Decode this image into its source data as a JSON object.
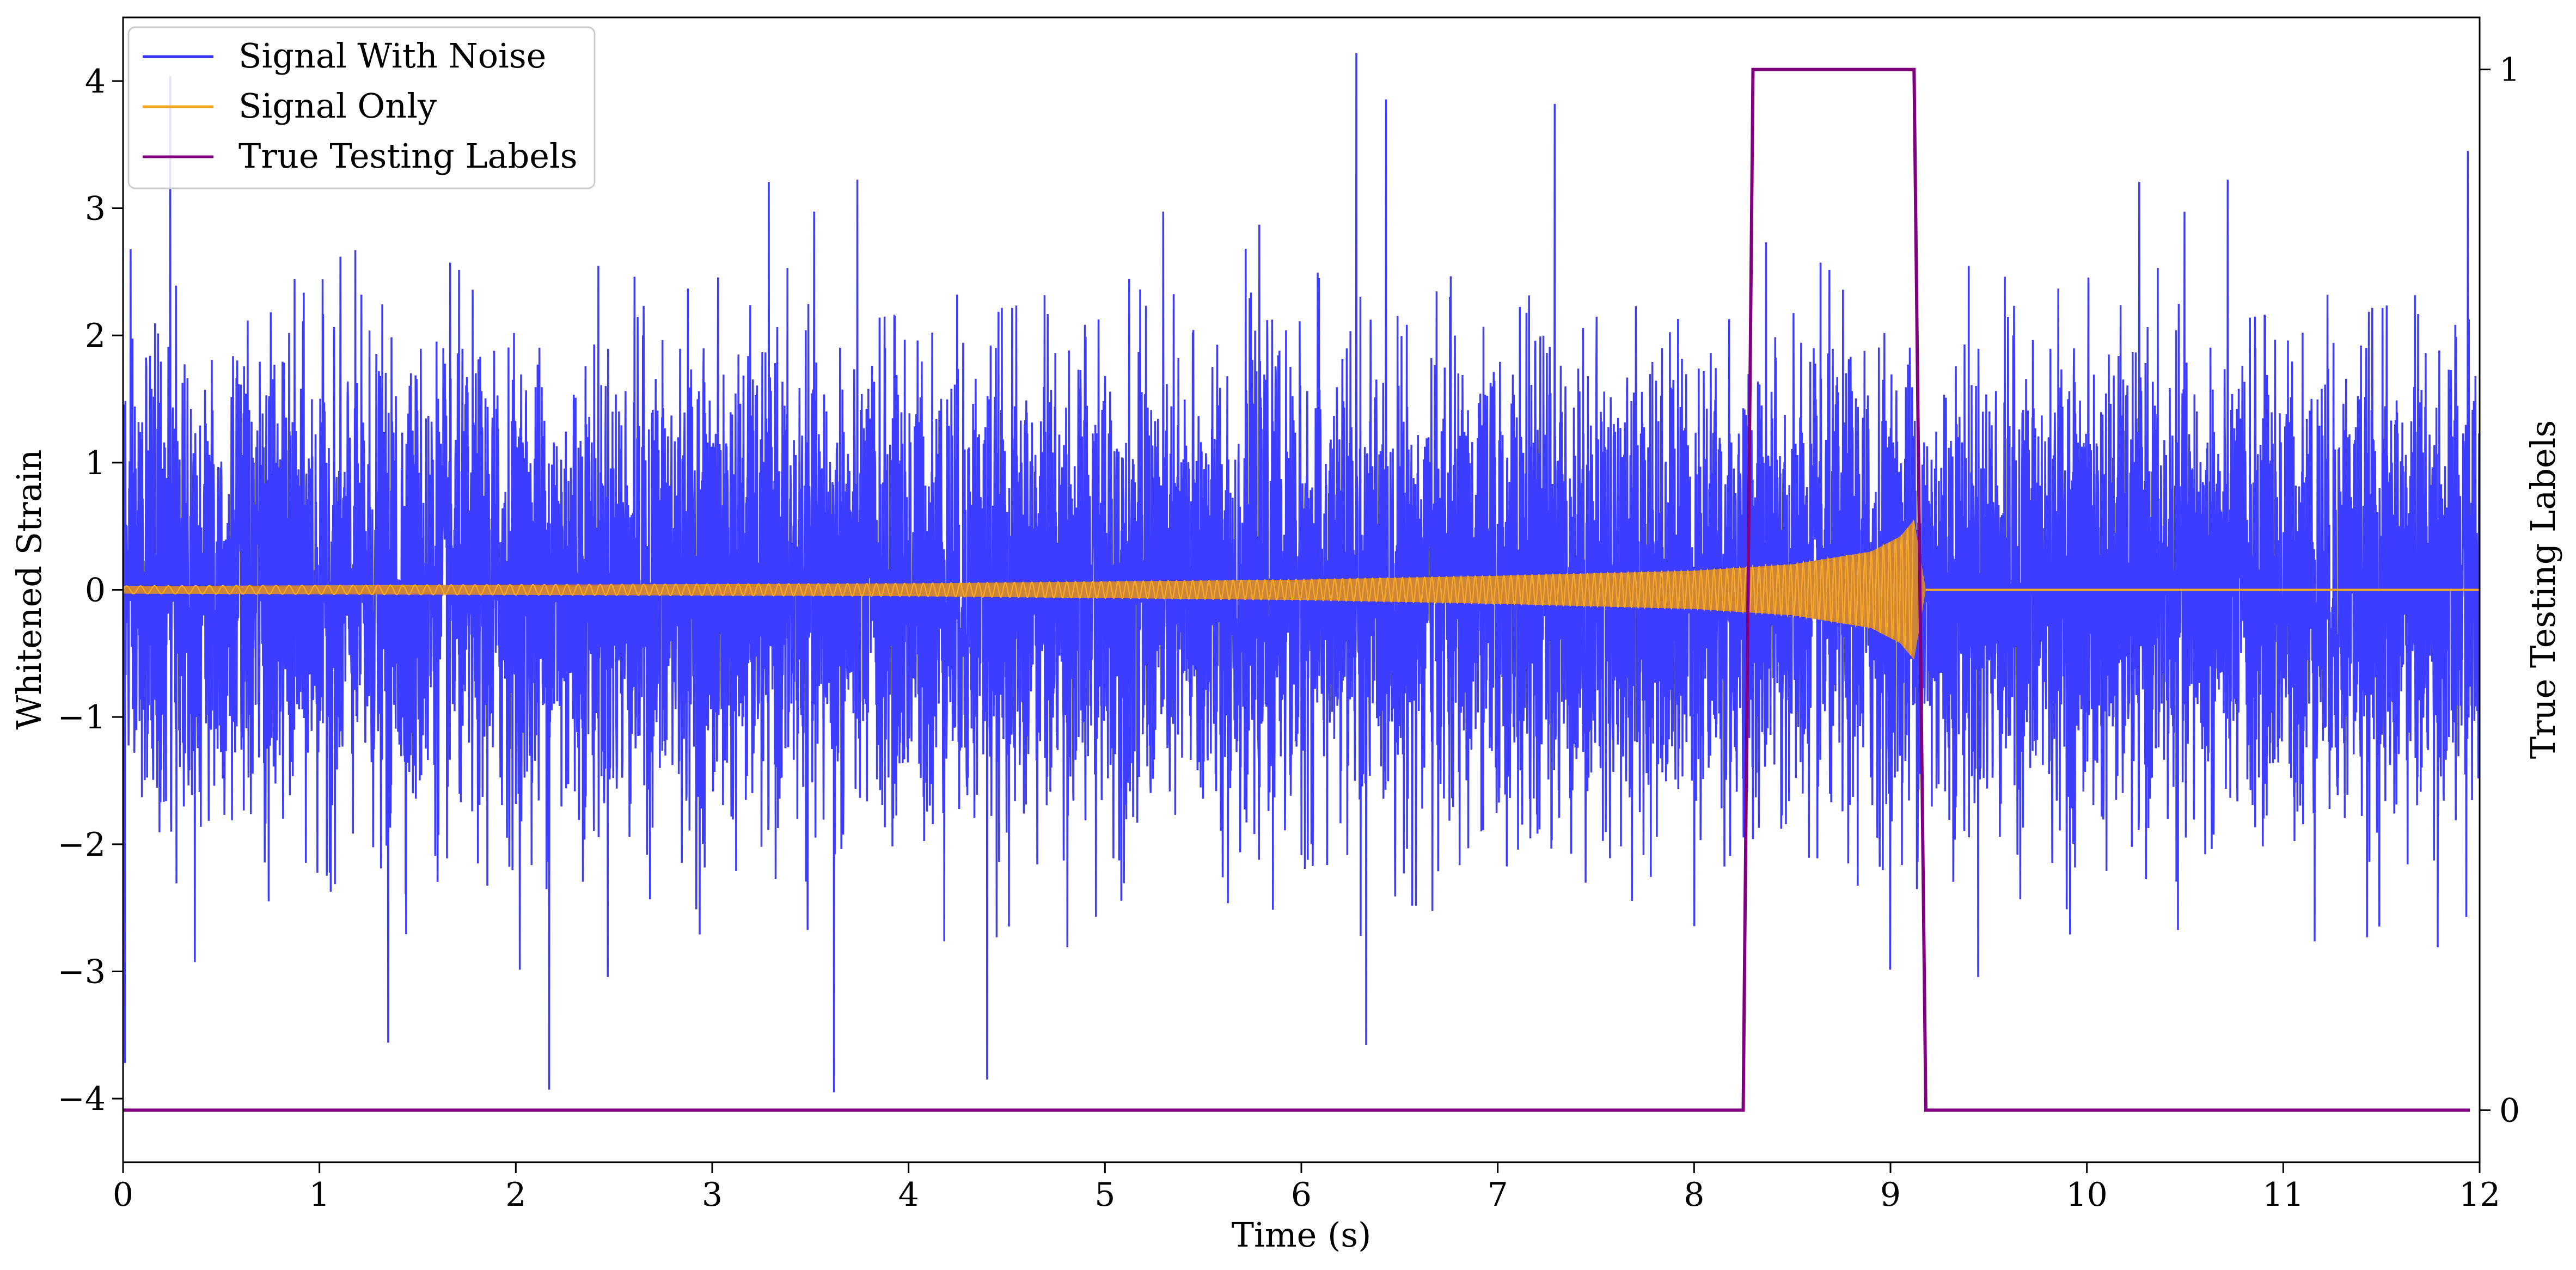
{
  "chart_data": {
    "type": "line",
    "title": "",
    "xlabel": "Time (s)",
    "ylabel": "Whitened Strain",
    "y2label": "True Testing Labels",
    "xlim": [
      0,
      12
    ],
    "ylim": [
      -4.5,
      4.5
    ],
    "y2lim": [
      -0.05,
      1.05
    ],
    "x_ticks": [
      0,
      1,
      2,
      3,
      4,
      5,
      6,
      7,
      8,
      9,
      10,
      11,
      12
    ],
    "x_tick_labels": [
      "0",
      "1",
      "2",
      "3",
      "4",
      "5",
      "6",
      "7",
      "8",
      "9",
      "10",
      "11",
      "12"
    ],
    "y_ticks": [
      -4,
      -3,
      -2,
      -1,
      0,
      1,
      2,
      3,
      4
    ],
    "y_tick_labels": [
      "−4",
      "−3",
      "−2",
      "−1",
      "0",
      "1",
      "2",
      "3",
      "4"
    ],
    "y2_ticks": [
      0,
      1
    ],
    "y2_tick_labels": [
      "0",
      "1"
    ],
    "grid": false,
    "legend_position": "top-left",
    "colors": {
      "noise": "#3333ff",
      "signal": "#f5a623",
      "signal_overlap": "#d4892f",
      "labels": "#800080"
    },
    "series": [
      {
        "name": "Signal With Noise",
        "kind": "noise-band",
        "x_range": [
          0,
          12
        ],
        "envelope_max": 4.22,
        "envelope_min": -3.95,
        "notable_peaks": [
          {
            "x": 0.24,
            "y": 4.04
          },
          {
            "x": 6.28,
            "y": 4.22
          },
          {
            "x": 7.29,
            "y": 3.82
          },
          {
            "x": 11.94,
            "y": 3.45
          }
        ],
        "notable_troughs": [
          {
            "x": 0.01,
            "y": -3.72
          },
          {
            "x": 2.17,
            "y": -3.93
          },
          {
            "x": 3.62,
            "y": -3.95
          },
          {
            "x": 4.4,
            "y": -3.85
          },
          {
            "x": 6.33,
            "y": -3.58
          },
          {
            "x": 1.35,
            "y": -3.56
          }
        ]
      },
      {
        "name": "Signal Only",
        "kind": "chirp",
        "start": 0.0,
        "merger": 9.12,
        "end_of_ringdown": 9.18,
        "amplitude_points": [
          {
            "x": 0.0,
            "y": 0.03
          },
          {
            "x": 2.0,
            "y": 0.04
          },
          {
            "x": 4.0,
            "y": 0.05
          },
          {
            "x": 6.0,
            "y": 0.08
          },
          {
            "x": 7.0,
            "y": 0.11
          },
          {
            "x": 8.0,
            "y": 0.15
          },
          {
            "x": 8.5,
            "y": 0.2
          },
          {
            "x": 8.9,
            "y": 0.3
          },
          {
            "x": 9.05,
            "y": 0.42
          },
          {
            "x": 9.12,
            "y": 0.55
          }
        ]
      },
      {
        "name": "True Testing Labels",
        "axis": "right",
        "x": [
          0.0,
          8.25,
          8.3,
          9.12,
          9.18,
          11.95
        ],
        "y": [
          0,
          0,
          1,
          1,
          0,
          0
        ]
      }
    ]
  }
}
